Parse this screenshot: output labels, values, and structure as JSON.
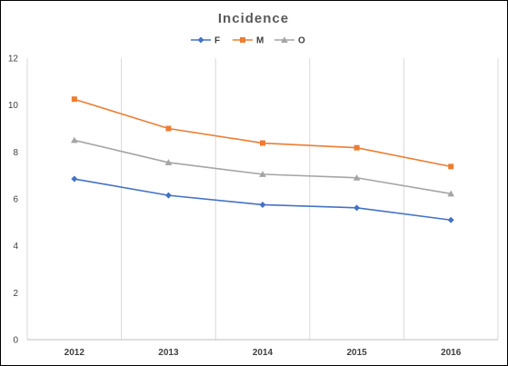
{
  "chart_data": {
    "type": "line",
    "title": "Incidence",
    "categories": [
      "2012",
      "2013",
      "2014",
      "2015",
      "2016"
    ],
    "ylim": [
      0,
      12
    ],
    "yticks": [
      0,
      2,
      4,
      6,
      8,
      10,
      12
    ],
    "grid": "vertical",
    "legend_position": "top",
    "series": [
      {
        "name": "F",
        "values": [
          6.85,
          6.15,
          5.75,
          5.62,
          5.1
        ],
        "color": "#4472C4",
        "marker": "diamond"
      },
      {
        "name": "M",
        "values": [
          10.25,
          9.0,
          8.38,
          8.18,
          7.38
        ],
        "color": "#ED7D31",
        "marker": "square"
      },
      {
        "name": "O",
        "values": [
          8.5,
          7.55,
          7.05,
          6.9,
          6.22
        ],
        "color": "#A5A5A5",
        "marker": "triangle"
      }
    ]
  }
}
